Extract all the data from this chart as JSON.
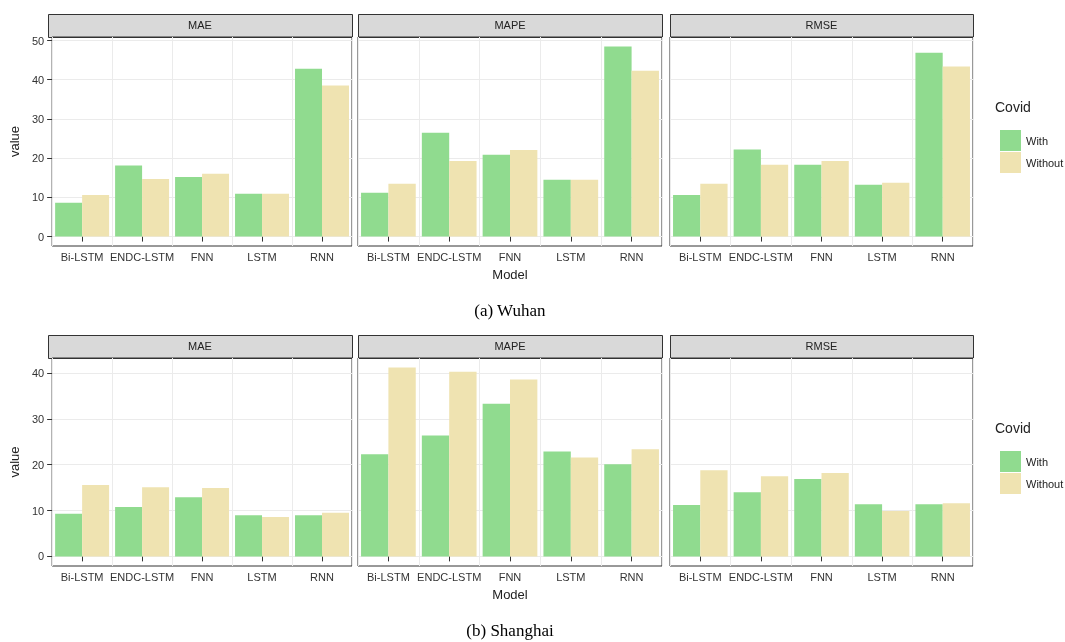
{
  "chart_data": [
    {
      "type": "bar",
      "title": "MAE",
      "ylabel": "value",
      "categories": [
        "Bi-LSTM",
        "ENDC-LSTM",
        "FNN",
        "LSTM",
        "RNN"
      ],
      "series": [
        {
          "color": "#90db8f",
          "values": [
            8.6,
            18.1,
            15.2,
            10.9,
            42.8
          ]
        },
        {
          "color": "#efe3b1",
          "values": [
            10.6,
            14.7,
            16.0,
            10.9,
            38.5
          ]
        }
      ],
      "ylim": [
        -2.4,
        50.9
      ],
      "yticks": [
        0,
        10,
        20,
        30,
        40,
        50
      ],
      "grid": true,
      "legend": false
    },
    {
      "type": "bar",
      "title": "MAPE",
      "xlabel": "Model",
      "annotations": [
        "(a) Wuhan"
      ],
      "categories": [
        "Bi-LSTM",
        "ENDC-LSTM",
        "FNN",
        "LSTM",
        "RNN"
      ],
      "series": [
        {
          "color": "#90db8f",
          "values": [
            11.2,
            26.5,
            20.9,
            14.5,
            48.5
          ]
        },
        {
          "color": "#efe3b1",
          "values": [
            13.5,
            19.3,
            22.1,
            14.5,
            42.3
          ]
        }
      ],
      "ylim": [
        -2.4,
        50.9
      ],
      "yticks": [
        0,
        10,
        20,
        30,
        40,
        50
      ],
      "grid": true,
      "legend": false,
      "tick_labels": "x"
    },
    {
      "type": "bar",
      "title": "RMSE",
      "legend_title": "Covid",
      "categories": [
        "Bi-LSTM",
        "ENDC-LSTM",
        "FNN",
        "LSTM",
        "RNN"
      ],
      "series": [
        {
          "name": "With",
          "color": "#90db8f",
          "values": [
            10.6,
            22.2,
            18.3,
            13.2,
            46.9
          ]
        },
        {
          "name": "Without",
          "color": "#efe3b1",
          "values": [
            13.5,
            18.3,
            19.3,
            13.7,
            43.4
          ]
        }
      ],
      "ylim": [
        -2.4,
        50.9
      ],
      "yticks": [
        0,
        10,
        20,
        30,
        40,
        50
      ],
      "grid": true,
      "legend": "right",
      "tick_labels": "x"
    },
    {
      "type": "bar",
      "title": "MAE",
      "ylabel": "value",
      "categories": [
        "Bi-LSTM",
        "ENDC-LSTM",
        "FNN",
        "LSTM",
        "RNN"
      ],
      "series": [
        {
          "color": "#90db8f",
          "values": [
            9.3,
            10.8,
            12.9,
            9.0,
            9.0
          ]
        },
        {
          "color": "#efe3b1",
          "values": [
            15.6,
            15.1,
            14.9,
            8.6,
            9.5
          ]
        }
      ],
      "ylim": [
        -2.1,
        43.3
      ],
      "yticks": [
        0,
        10,
        20,
        30,
        40
      ],
      "grid": true,
      "legend": false
    },
    {
      "type": "bar",
      "title": "MAPE",
      "xlabel": "Model",
      "annotations": [
        "(b) Shanghai"
      ],
      "categories": [
        "Bi-LSTM",
        "ENDC-LSTM",
        "FNN",
        "LSTM",
        "RNN"
      ],
      "series": [
        {
          "color": "#90db8f",
          "values": [
            22.3,
            26.4,
            33.3,
            22.9,
            20.1
          ]
        },
        {
          "color": "#efe3b1",
          "values": [
            41.2,
            40.3,
            38.6,
            21.6,
            23.4
          ]
        }
      ],
      "ylim": [
        -2.1,
        43.3
      ],
      "yticks": [
        0,
        10,
        20,
        30,
        40
      ],
      "grid": true,
      "legend": false,
      "tick_labels": "x"
    },
    {
      "type": "bar",
      "title": "RMSE",
      "legend_title": "Covid",
      "categories": [
        "Bi-LSTM",
        "ENDC-LSTM",
        "FNN",
        "LSTM",
        "RNN"
      ],
      "series": [
        {
          "name": "With",
          "color": "#90db8f",
          "values": [
            11.2,
            14.0,
            16.9,
            11.4,
            11.4
          ]
        },
        {
          "name": "Without",
          "color": "#efe3b1",
          "values": [
            18.8,
            17.5,
            18.2,
            9.9,
            11.6
          ]
        }
      ],
      "ylim": [
        -2.1,
        43.3
      ],
      "yticks": [
        0,
        10,
        20,
        30,
        40
      ],
      "grid": true,
      "legend": "right",
      "tick_labels": "x"
    }
  ]
}
